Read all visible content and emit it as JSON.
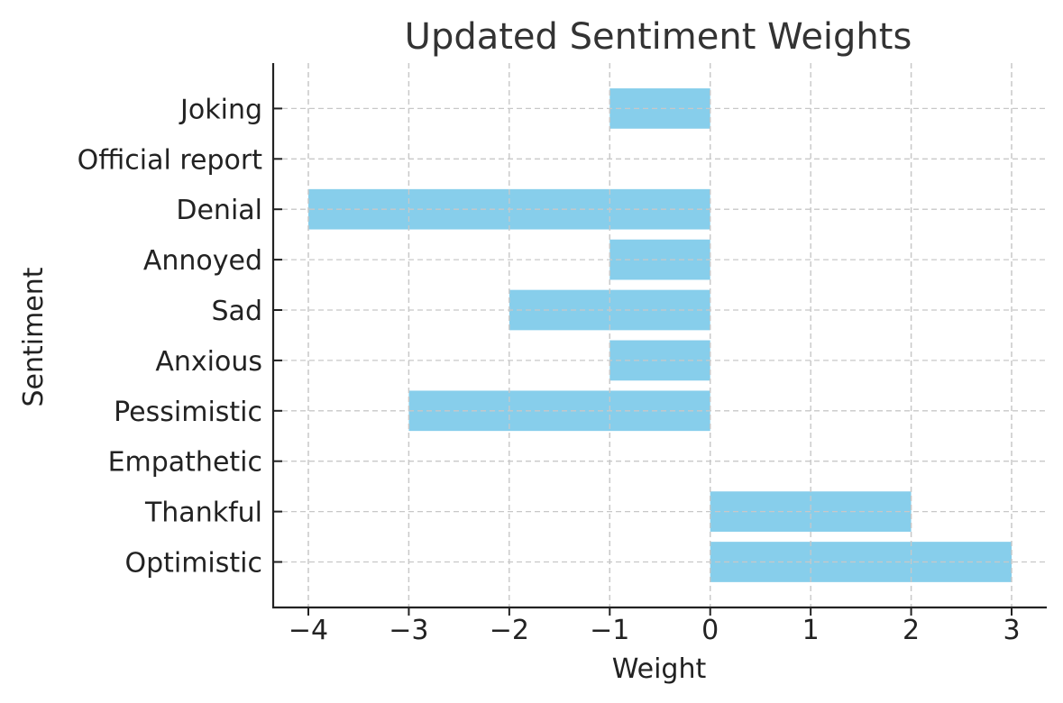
{
  "chart_data": {
    "type": "bar",
    "orientation": "horizontal",
    "title": "Updated Sentiment Weights",
    "xlabel": "Weight",
    "ylabel": "Sentiment",
    "categories": [
      "Optimistic",
      "Thankful",
      "Empathetic",
      "Pessimistic",
      "Anxious",
      "Sad",
      "Annoyed",
      "Denial",
      "Official report",
      "Joking"
    ],
    "values": [
      3,
      2,
      0,
      -3,
      -1,
      -2,
      -1,
      -4,
      0,
      -1
    ],
    "xticks": [
      -4,
      -3,
      -2,
      -1,
      0,
      1,
      2,
      3
    ],
    "xtick_labels": [
      "−4",
      "−3",
      "−2",
      "−1",
      "0",
      "1",
      "2",
      "3"
    ],
    "xlim": [
      -4.35,
      3.35
    ],
    "grid": true,
    "bar_color": "#87ceeb"
  }
}
